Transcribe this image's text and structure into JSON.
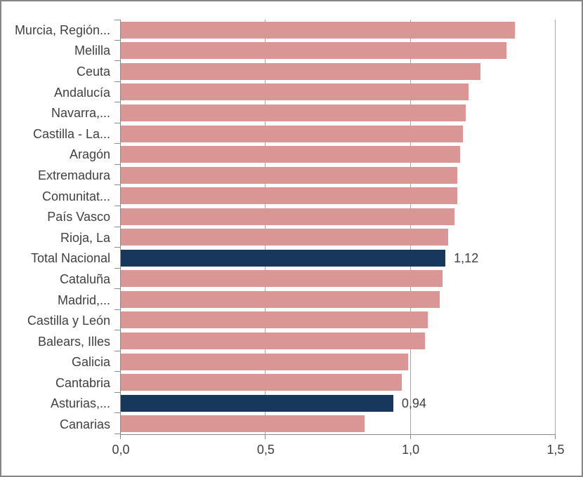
{
  "chart_data": {
    "type": "bar",
    "orientation": "horizontal",
    "title": "",
    "xlabel": "",
    "ylabel": "",
    "xlim": [
      0,
      1.5
    ],
    "x_tick_values": [
      0,
      0.5,
      1,
      1.5
    ],
    "x_tick_labels": [
      "0,0",
      "0,5",
      "1,0",
      "1,5"
    ],
    "grid": "vertical-major",
    "legend_position": "none",
    "categories": [
      "Murcia, Región...",
      "Melilla",
      "Ceuta",
      "Andalucía",
      "Navarra,...",
      "Castilla - La...",
      "Aragón",
      "Extremadura",
      "Comunitat...",
      "País Vasco",
      "Rioja, La",
      "Total Nacional",
      "Cataluña",
      "Madrid,...",
      "Castilla y León",
      "Balears, Illes",
      "Galicia",
      "Cantabria",
      "Asturias,...",
      "Canarias"
    ],
    "values": [
      1.36,
      1.33,
      1.24,
      1.2,
      1.19,
      1.18,
      1.17,
      1.16,
      1.16,
      1.15,
      1.13,
      1.12,
      1.11,
      1.1,
      1.06,
      1.05,
      0.99,
      0.97,
      0.94,
      0.84
    ],
    "highlight_indices": [
      11,
      18
    ],
    "data_labels": [
      {
        "index": 11,
        "text": "1,12"
      },
      {
        "index": 18,
        "text": "0,94"
      }
    ]
  },
  "colors": {
    "bar": "#d99694",
    "highlight_bar": "#17375d",
    "axis": "#8a8a8a",
    "gridline": "#a6a6a6",
    "text": "#404040",
    "frame_border": "#868686",
    "background": "#ffffff"
  }
}
